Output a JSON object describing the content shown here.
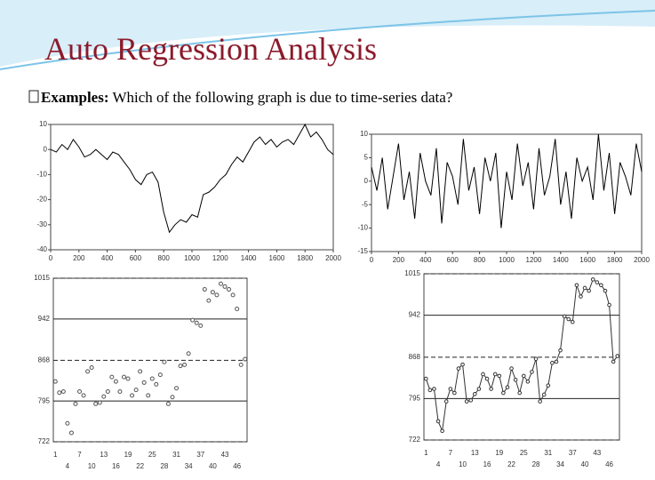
{
  "header": {
    "title": "Auto Regression Analysis",
    "lead": "Examples:",
    "question": "Which of the following graph is due to time-series data?"
  },
  "chart_data": [
    {
      "type": "line",
      "color": "#000000",
      "x": [
        0,
        40,
        80,
        120,
        160,
        200,
        240,
        280,
        320,
        360,
        400,
        440,
        480,
        520,
        560,
        600,
        640,
        680,
        720,
        760,
        800,
        840,
        880,
        920,
        960,
        1000,
        1040,
        1080,
        1120,
        1160,
        1200,
        1240,
        1280,
        1320,
        1360,
        1400,
        1440,
        1480,
        1520,
        1560,
        1600,
        1640,
        1680,
        1720,
        1760,
        1800,
        1840,
        1880,
        1920,
        1960,
        2000
      ],
      "values": [
        0,
        -1,
        2,
        0,
        4,
        1,
        -3,
        -2,
        0,
        -2,
        -4,
        -1,
        -2,
        -5,
        -8,
        -12,
        -14,
        -10,
        -9,
        -13,
        -25,
        -33,
        -30,
        -28,
        -29,
        -26,
        -27,
        -18,
        -17,
        -15,
        -12,
        -10,
        -6,
        -3,
        -5,
        -1,
        3,
        5,
        2,
        4,
        1,
        3,
        4,
        2,
        6,
        10,
        5,
        7,
        4,
        0,
        -2
      ],
      "xlim": [
        0,
        2000
      ],
      "xticks": [
        0,
        200,
        400,
        600,
        800,
        1000,
        1200,
        1400,
        1600,
        1800,
        2000
      ],
      "ylim": [
        -40,
        10
      ],
      "yticks": [
        10,
        0,
        -10,
        -20,
        -30,
        -40
      ]
    },
    {
      "type": "line",
      "color": "#000000",
      "x": [
        0,
        40,
        80,
        120,
        160,
        200,
        240,
        280,
        320,
        360,
        400,
        440,
        480,
        520,
        560,
        600,
        640,
        680,
        720,
        760,
        800,
        840,
        880,
        920,
        960,
        1000,
        1040,
        1080,
        1120,
        1160,
        1200,
        1240,
        1280,
        1320,
        1360,
        1400,
        1440,
        1480,
        1520,
        1560,
        1600,
        1640,
        1680,
        1720,
        1760,
        1800,
        1840,
        1880,
        1920,
        1960,
        2000
      ],
      "values": [
        3,
        -2,
        5,
        -6,
        1,
        8,
        -4,
        2,
        -8,
        6,
        0,
        -3,
        7,
        -9,
        4,
        1,
        -5,
        9,
        -2,
        3,
        -7,
        5,
        0,
        6,
        -10,
        2,
        -4,
        8,
        -1,
        4,
        -6,
        7,
        -3,
        1,
        9,
        -5,
        2,
        -8,
        5,
        0,
        3,
        -4,
        10,
        -2,
        6,
        -7,
        4,
        1,
        -3,
        8,
        2
      ],
      "xlim": [
        0,
        2000
      ],
      "xticks": [
        0,
        200,
        400,
        600,
        800,
        1000,
        1200,
        1400,
        1600,
        1800,
        2000
      ],
      "ylim": [
        -15,
        10
      ],
      "yticks": [
        10,
        5,
        0,
        -5,
        -10,
        -15
      ]
    },
    {
      "type": "scatter",
      "color": "#555555",
      "grid": "dashed",
      "categories": [
        "1",
        null,
        null,
        "4",
        null,
        null,
        "7",
        null,
        null,
        "10",
        null,
        null,
        "13",
        null,
        null,
        "16",
        null,
        null,
        "19",
        null,
        null,
        "22",
        null,
        null,
        "25",
        null,
        null,
        "28",
        null,
        null,
        "31",
        null,
        null,
        "34",
        null,
        null,
        "37",
        null,
        null,
        "40",
        null,
        null,
        "43",
        null,
        null,
        "46",
        null,
        null
      ],
      "values": [
        830,
        810,
        812,
        755,
        738,
        790,
        812,
        805,
        848,
        855,
        790,
        792,
        803,
        812,
        838,
        830,
        812,
        838,
        835,
        805,
        815,
        848,
        828,
        805,
        835,
        825,
        842,
        865,
        790,
        802,
        818,
        858,
        860,
        880,
        940,
        935,
        930,
        995,
        975,
        990,
        985,
        1005,
        1000,
        995,
        985,
        960,
        860,
        870
      ],
      "ylim": [
        722,
        1015
      ],
      "yticks": [
        722,
        795,
        868,
        942,
        1015
      ]
    },
    {
      "type": "line",
      "color": "#333333",
      "grid": "dashed",
      "markers": true,
      "categories": [
        "1",
        null,
        null,
        "4",
        null,
        null,
        "7",
        null,
        null,
        "10",
        null,
        null,
        "13",
        null,
        null,
        "16",
        null,
        null,
        "19",
        null,
        null,
        "22",
        null,
        null,
        "25",
        null,
        null,
        "28",
        null,
        null,
        "31",
        null,
        null,
        "34",
        null,
        null,
        "37",
        null,
        null,
        "40",
        null,
        null,
        "43",
        null,
        null,
        "46",
        null,
        null
      ],
      "values": [
        830,
        810,
        812,
        755,
        738,
        790,
        812,
        805,
        848,
        855,
        790,
        792,
        803,
        812,
        838,
        830,
        812,
        838,
        835,
        805,
        815,
        848,
        828,
        805,
        835,
        825,
        842,
        865,
        790,
        802,
        818,
        858,
        860,
        880,
        940,
        935,
        930,
        995,
        975,
        990,
        985,
        1005,
        1000,
        995,
        985,
        960,
        860,
        870
      ],
      "ylim": [
        722,
        1015
      ],
      "yticks": [
        722,
        795,
        868,
        942,
        1015
      ]
    }
  ]
}
